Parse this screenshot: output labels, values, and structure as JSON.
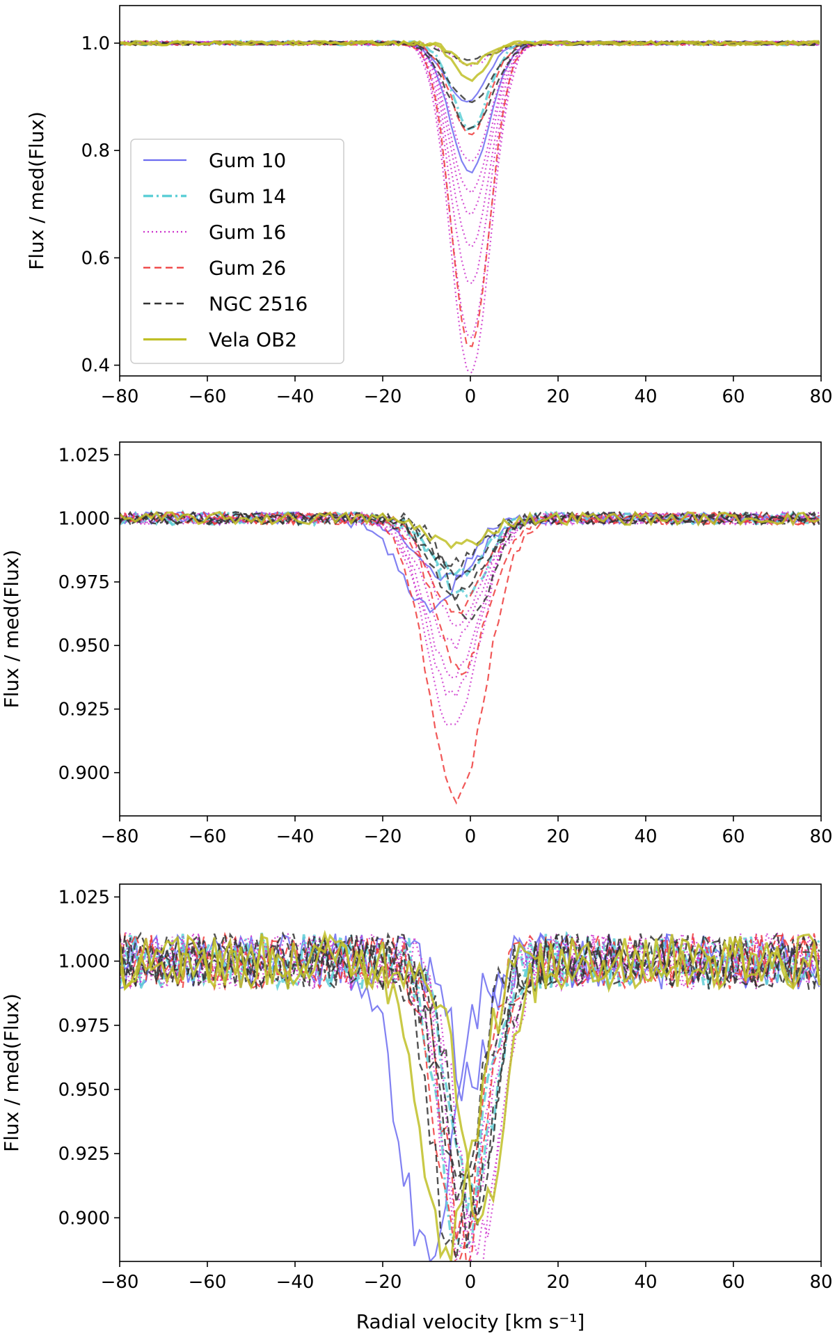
{
  "styles": {
    "Gum 10": {
      "color": "#6b6bf0",
      "dash": "",
      "width": 2.2
    },
    "Gum 14": {
      "color": "#5ecfd6",
      "dash": "14 5 3 5",
      "width": 3.5
    },
    "Gum 16": {
      "color": "#cc33cc",
      "dash": "2 4",
      "width": 2.2
    },
    "Gum 26": {
      "color": "#ee3b3b",
      "dash": "10 6",
      "width": 2.2
    },
    "NGC 2516": {
      "color": "#333333",
      "dash": "10 6",
      "width": 2.4
    },
    "Vela OB2": {
      "color": "#bfbf26",
      "dash": "",
      "width": 3.2
    }
  },
  "chart_data": [
    {
      "type": "line",
      "xlabel": "",
      "ylabel": "Flux / med(Flux)",
      "xlim": [
        -80,
        80
      ],
      "ylim": [
        0.38,
        1.07
      ],
      "xticks": [
        -80,
        -60,
        -40,
        -20,
        0,
        20,
        40,
        60,
        80
      ],
      "yticks": [
        0.4,
        0.6,
        0.8,
        1.0
      ],
      "yticklabels": [
        "0.4",
        "0.6",
        "0.8",
        "1.0"
      ],
      "legend": {
        "placement": "center-left",
        "entries": [
          "Gum 10",
          "Gum 14",
          "Gum 16",
          "Gum 26",
          "NGC 2516",
          "Vela OB2"
        ]
      },
      "profiles": [
        {
          "group": "Gum 10",
          "center": 0,
          "depth": 0.24,
          "sigma": 4.5
        },
        {
          "group": "Gum 10",
          "center": -1,
          "depth": 0.11,
          "sigma": 4.5
        },
        {
          "group": "Gum 14",
          "center": 0,
          "depth": 0.16,
          "sigma": 4.0
        },
        {
          "group": "Gum 16",
          "center": 0,
          "depth": 0.62,
          "sigma": 4.5
        },
        {
          "group": "Gum 16",
          "center": 0,
          "depth": 0.55,
          "sigma": 4.5
        },
        {
          "group": "Gum 16",
          "center": 0,
          "depth": 0.45,
          "sigma": 4.5
        },
        {
          "group": "Gum 16",
          "center": 0,
          "depth": 0.38,
          "sigma": 4.5
        },
        {
          "group": "Gum 16",
          "center": 0,
          "depth": 0.32,
          "sigma": 4.5
        },
        {
          "group": "Gum 16",
          "center": 0,
          "depth": 0.28,
          "sigma": 4.5
        },
        {
          "group": "Gum 16",
          "center": 0,
          "depth": 0.22,
          "sigma": 4.5
        },
        {
          "group": "Gum 16",
          "center": 0,
          "depth": 0.04,
          "sigma": 4.5
        },
        {
          "group": "Gum 26",
          "center": 0,
          "depth": 0.57,
          "sigma": 4.3
        },
        {
          "group": "Gum 26",
          "center": 0,
          "depth": 0.17,
          "sigma": 4.3
        },
        {
          "group": "NGC 2516",
          "center": 0,
          "depth": 0.11,
          "sigma": 5.0
        },
        {
          "group": "NGC 2516",
          "center": 0,
          "depth": 0.16,
          "sigma": 5.0
        },
        {
          "group": "NGC 2516",
          "center": 0,
          "depth": 0.03,
          "sigma": 5.0
        },
        {
          "group": "Vela OB2",
          "center": 0,
          "depth": 0.07,
          "sigma": 3.5
        },
        {
          "group": "Vela OB2",
          "center": 0,
          "depth": 0.04,
          "sigma": 3.5
        }
      ]
    },
    {
      "type": "line",
      "xlabel": "",
      "ylabel": "Flux / med(Flux)",
      "xlim": [
        -80,
        80
      ],
      "ylim": [
        0.883,
        1.03
      ],
      "xticks": [
        -80,
        -60,
        -40,
        -20,
        0,
        20,
        40,
        60,
        80
      ],
      "yticks": [
        0.9,
        0.925,
        0.95,
        0.975,
        1.0,
        1.025
      ],
      "yticklabels": [
        "0.900",
        "0.925",
        "0.950",
        "0.975",
        "1.000",
        "1.025"
      ],
      "profiles": [
        {
          "group": "Gum 10",
          "center": -9,
          "depth": 0.035,
          "sigma": 7
        },
        {
          "group": "Gum 10",
          "center": -5,
          "depth": 0.024,
          "sigma": 7
        },
        {
          "group": "Gum 14",
          "center": -2,
          "depth": 0.03,
          "sigma": 6
        },
        {
          "group": "Gum 14",
          "center": -3,
          "depth": 0.022,
          "sigma": 6
        },
        {
          "group": "Gum 16",
          "center": -4,
          "depth": 0.082,
          "sigma": 6
        },
        {
          "group": "Gum 16",
          "center": -4,
          "depth": 0.07,
          "sigma": 6
        },
        {
          "group": "Gum 16",
          "center": -4,
          "depth": 0.062,
          "sigma": 6
        },
        {
          "group": "Gum 16",
          "center": -4,
          "depth": 0.05,
          "sigma": 6
        },
        {
          "group": "Gum 16",
          "center": -3,
          "depth": 0.04,
          "sigma": 6
        },
        {
          "group": "Gum 26",
          "center": -3,
          "depth": 0.11,
          "sigma": 6.5
        },
        {
          "group": "Gum 26",
          "center": -2,
          "depth": 0.06,
          "sigma": 6
        },
        {
          "group": "Gum 26",
          "center": -3,
          "depth": 0.036,
          "sigma": 6
        },
        {
          "group": "NGC 2516",
          "center": -3,
          "depth": 0.03,
          "sigma": 6
        },
        {
          "group": "NGC 2516",
          "center": -2,
          "depth": 0.022,
          "sigma": 6
        },
        {
          "group": "NGC 2516",
          "center": -4,
          "depth": 0.018,
          "sigma": 6
        },
        {
          "group": "NGC 2516",
          "center": 0,
          "depth": 0.04,
          "sigma": 5
        },
        {
          "group": "Vela OB2",
          "center": -3,
          "depth": 0.011,
          "sigma": 6
        }
      ]
    },
    {
      "type": "line",
      "xlabel": "Radial velocity [km s⁻¹]",
      "ylabel": "Flux / med(Flux)",
      "xlim": [
        -80,
        80
      ],
      "ylim": [
        0.883,
        1.03
      ],
      "xticks": [
        -80,
        -60,
        -40,
        -20,
        0,
        20,
        40,
        60,
        80
      ],
      "yticks": [
        0.9,
        0.925,
        0.95,
        0.975,
        1.0,
        1.025
      ],
      "yticklabels": [
        "0.900",
        "0.925",
        "0.950",
        "0.975",
        "1.000",
        "1.025"
      ],
      "profiles": [
        {
          "group": "Gum 10",
          "center": -10,
          "depth": 0.115,
          "sigma": 6
        },
        {
          "group": "Gum 10",
          "center": 0,
          "depth": 0.05,
          "sigma": 4
        },
        {
          "group": "Gum 14",
          "center": -2,
          "depth": 0.11,
          "sigma": 5
        },
        {
          "group": "Gum 14",
          "center": 0,
          "depth": 0.095,
          "sigma": 5
        },
        {
          "group": "Gum 16",
          "center": 1,
          "depth": 0.118,
          "sigma": 5
        },
        {
          "group": "Gum 16",
          "center": -2,
          "depth": 0.11,
          "sigma": 5
        },
        {
          "group": "Gum 16",
          "center": 2,
          "depth": 0.105,
          "sigma": 5
        },
        {
          "group": "Gum 16",
          "center": -1,
          "depth": 0.112,
          "sigma": 5
        },
        {
          "group": "Gum 26",
          "center": -3,
          "depth": 0.114,
          "sigma": 5
        },
        {
          "group": "Gum 26",
          "center": -1,
          "depth": 0.11,
          "sigma": 5
        },
        {
          "group": "NGC 2516",
          "center": -4,
          "depth": 0.11,
          "sigma": 5
        },
        {
          "group": "NGC 2516",
          "center": 0,
          "depth": 0.105,
          "sigma": 5
        },
        {
          "group": "NGC 2516",
          "center": -2,
          "depth": 0.09,
          "sigma": 5
        },
        {
          "group": "NGC 2516",
          "center": 1,
          "depth": 0.095,
          "sigma": 5
        },
        {
          "group": "Vela OB2",
          "center": -5,
          "depth": 0.11,
          "sigma": 6
        },
        {
          "group": "Vela OB2",
          "center": 3,
          "depth": 0.1,
          "sigma": 5
        }
      ]
    }
  ]
}
